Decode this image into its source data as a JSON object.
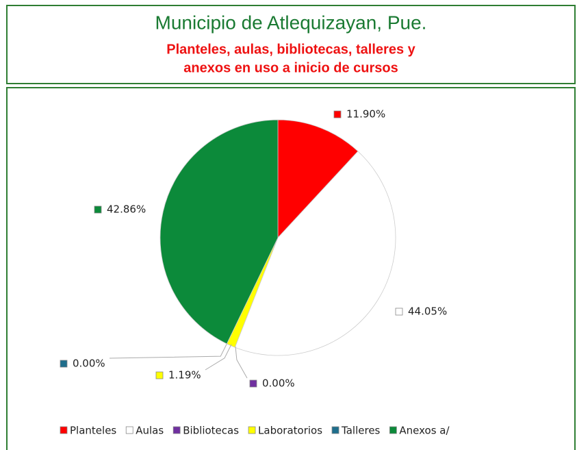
{
  "chart_data": {
    "type": "pie",
    "title": "Municipio de Atlequizayan, Pue.",
    "subtitle": [
      "Planteles, aulas, bibliotecas, talleres y",
      "anexos en uso a inicio de cursos"
    ],
    "categories": [
      "Planteles",
      "Aulas",
      "Bibliotecas",
      "Laboratorios",
      "Talleres",
      "Anexos a/"
    ],
    "values": [
      11.9,
      44.05,
      0.0,
      1.19,
      0.0,
      42.86
    ],
    "value_labels": [
      "11.90%",
      "44.05%",
      "0.00%",
      "1.19%",
      "0.00%",
      "42.86%"
    ],
    "colors": [
      "#ff0000",
      "#ffffff",
      "#7030a0",
      "#ffff00",
      "#1f6e8c",
      "#0c8a3a"
    ],
    "legend": "bottom"
  }
}
